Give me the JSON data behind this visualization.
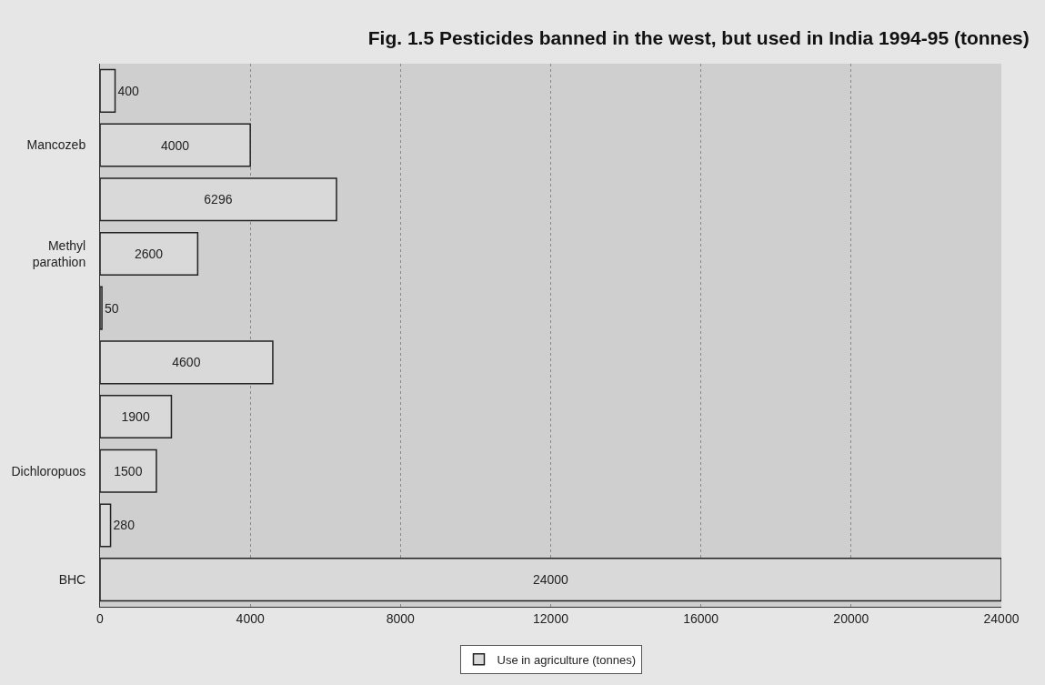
{
  "chart_data": {
    "type": "bar",
    "orientation": "horizontal",
    "title": "Fig. 1.5 Pesticides banned in the west, but used in India 1994-95 (tonnes)",
    "categories": [
      null,
      "Mancozeb",
      null,
      "Methyl parathion",
      null,
      null,
      null,
      "Dichloropuos",
      null,
      "BHC"
    ],
    "series": [
      {
        "name": "Use in agriculture (tonnes)",
        "color": "#d9d9d9",
        "values": [
          400,
          4000,
          6296,
          2600,
          50,
          4600,
          1900,
          1500,
          280,
          24000
        ]
      }
    ],
    "xlim": [
      0,
      24000
    ],
    "xticks": [
      0,
      4000,
      8000,
      12000,
      16000,
      20000,
      24000
    ],
    "grid": "x",
    "legend": "bottom",
    "data_labels": true
  }
}
